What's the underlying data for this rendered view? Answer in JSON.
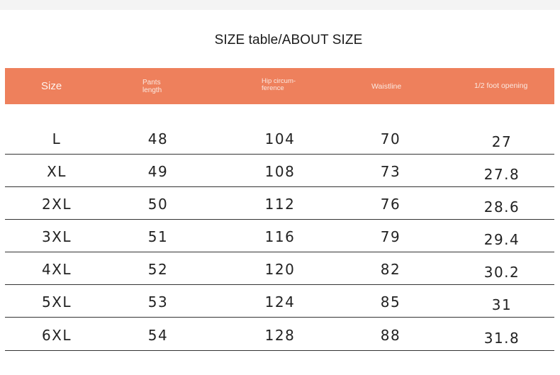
{
  "title": "SIZE table/ABOUT SIZE",
  "colors": {
    "header_bg": "#ee805c",
    "header_text": "#fbe9e2",
    "row_line": "#333333"
  },
  "table": {
    "headers": [
      "Size",
      "Pants length",
      "Hip circum-ference",
      "Waistline",
      "1/2 foot opening"
    ],
    "header_lines": {
      "pants": [
        "Pants",
        "length"
      ],
      "hip": [
        "Hip circum-",
        "ference"
      ]
    },
    "rows": [
      [
        "L",
        "48",
        "104",
        "70",
        "27"
      ],
      [
        "XL",
        "49",
        "108",
        "73",
        "27.8"
      ],
      [
        "2XL",
        "50",
        "112",
        "76",
        "28.6"
      ],
      [
        "3XL",
        "51",
        "116",
        "79",
        "29.4"
      ],
      [
        "4XL",
        "52",
        "120",
        "82",
        "30.2"
      ],
      [
        "5XL",
        "53",
        "124",
        "85",
        "31"
      ],
      [
        "6XL",
        "54",
        "128",
        "88",
        "31.8"
      ]
    ]
  }
}
